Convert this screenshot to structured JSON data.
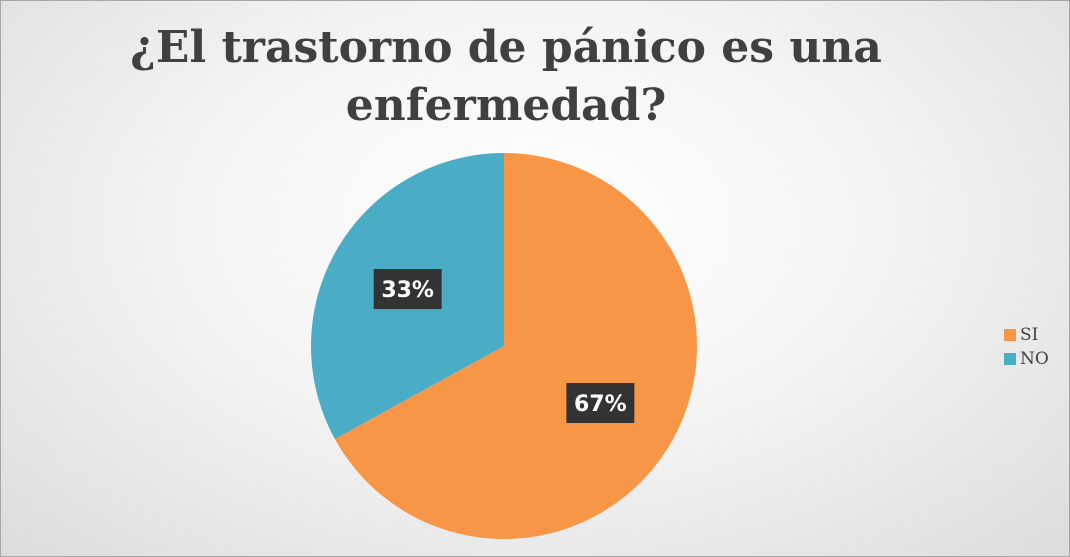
{
  "chart_data": {
    "type": "pie",
    "title": "¿El trastorno de pánico es una enfermedad?",
    "slices": [
      {
        "label": "SI",
        "value": 67,
        "display": "67%",
        "color": "#f79646"
      },
      {
        "label": "NO",
        "value": 33,
        "display": "33%",
        "color": "#4bacc6"
      }
    ],
    "legend_position": "right",
    "start_angle_deg": 0,
    "direction": "clockwise"
  }
}
